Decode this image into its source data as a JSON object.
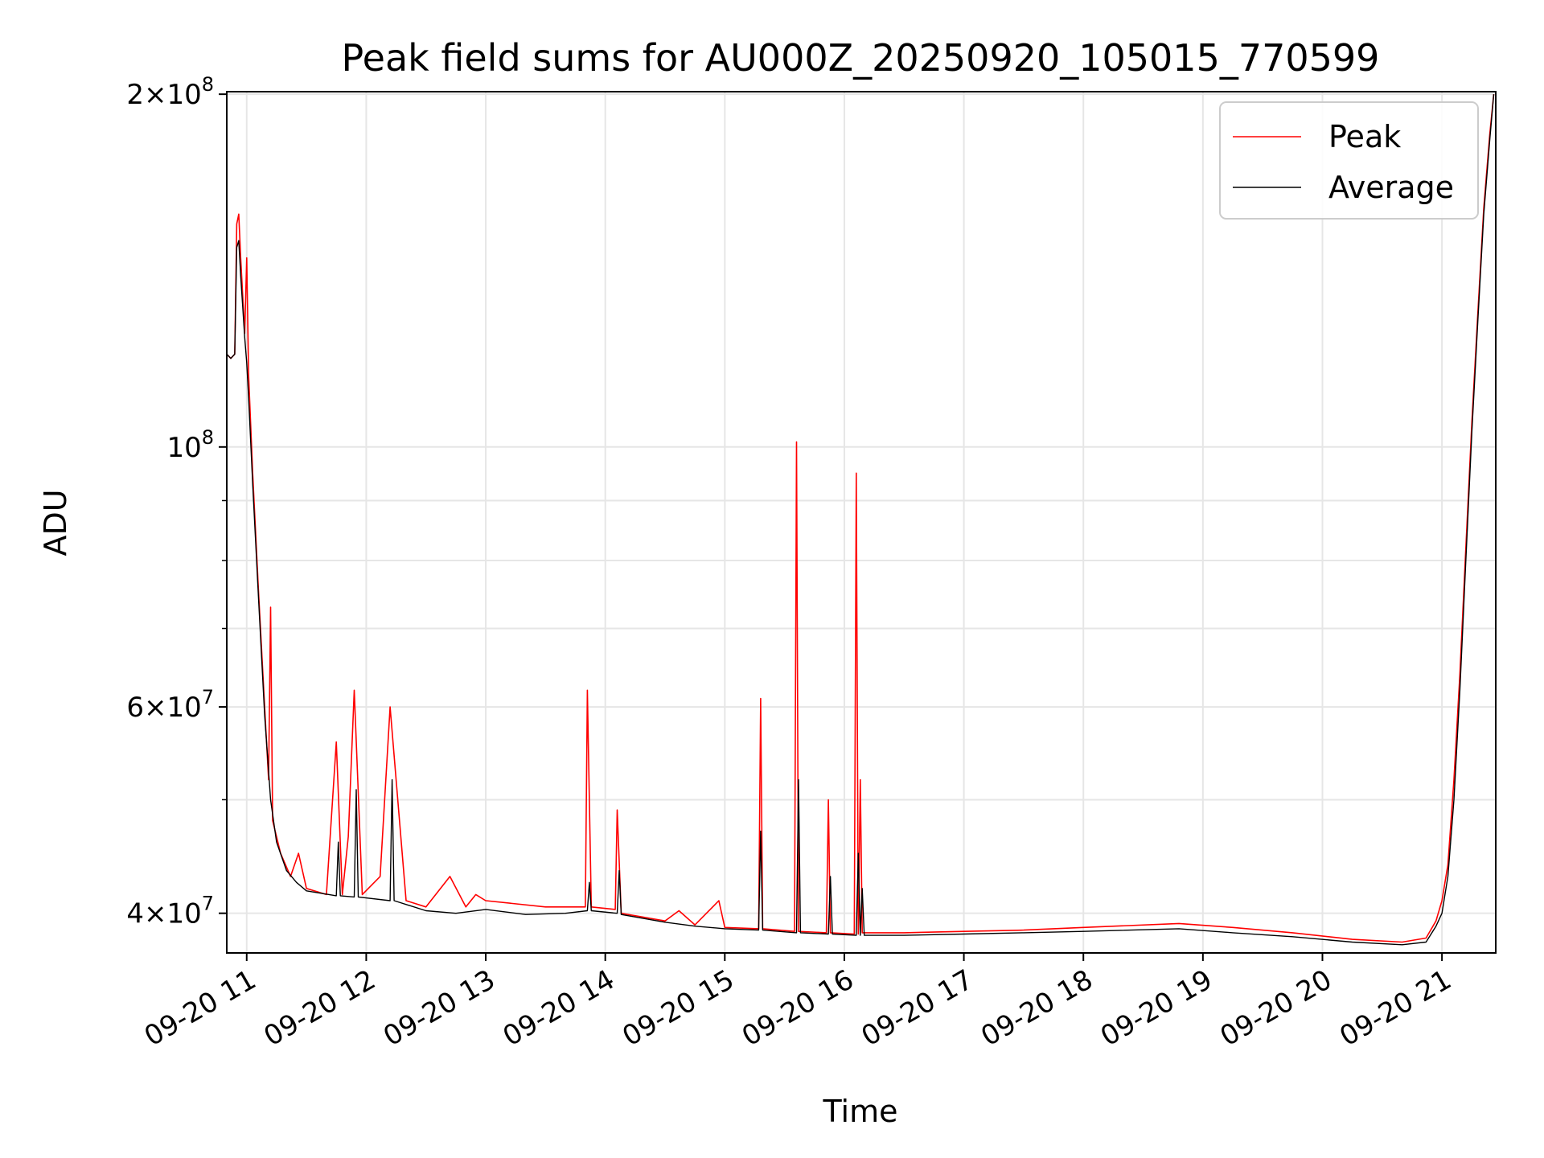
{
  "chart_data": {
    "type": "line",
    "title": "Peak field sums for AU000Z_20250920_105015_770599",
    "xlabel": "Time",
    "ylabel": "ADU",
    "y_scale": "log",
    "ylim": [
      37000000,
      201000000
    ],
    "xlim": [
      "2025-09-20 10:50",
      "2025-09-20 21:27"
    ],
    "grid": true,
    "legend_position": "top-right",
    "x_ticks": [
      {
        "t": "2025-09-20 11:00",
        "label": "09-20 11"
      },
      {
        "t": "2025-09-20 12:00",
        "label": "09-20 12"
      },
      {
        "t": "2025-09-20 13:00",
        "label": "09-20 13"
      },
      {
        "t": "2025-09-20 14:00",
        "label": "09-20 14"
      },
      {
        "t": "2025-09-20 15:00",
        "label": "09-20 15"
      },
      {
        "t": "2025-09-20 16:00",
        "label": "09-20 16"
      },
      {
        "t": "2025-09-20 17:00",
        "label": "09-20 17"
      },
      {
        "t": "2025-09-20 18:00",
        "label": "09-20 18"
      },
      {
        "t": "2025-09-20 19:00",
        "label": "09-20 19"
      },
      {
        "t": "2025-09-20 20:00",
        "label": "09-20 20"
      },
      {
        "t": "2025-09-20 21:00",
        "label": "09-20 21"
      }
    ],
    "y_ticks": [
      {
        "value": 40000000,
        "base": "4×10",
        "exp": "7"
      },
      {
        "value": 60000000,
        "base": "6×10",
        "exp": "7"
      },
      {
        "value": 100000000,
        "base": "10",
        "exp": "8"
      },
      {
        "value": 200000000,
        "base": "2×10",
        "exp": "8"
      }
    ],
    "y_minor_ticks": [
      50000000,
      70000000,
      80000000,
      90000000
    ],
    "series": [
      {
        "name": "Peak",
        "color": "#ff0000",
        "points": [
          [
            "2025-09-20 10:50",
            120000000
          ],
          [
            "2025-09-20 10:52",
            119000000
          ],
          [
            "2025-09-20 10:54",
            120000000
          ],
          [
            "2025-09-20 10:55",
            155000000
          ],
          [
            "2025-09-20 10:56",
            158000000
          ],
          [
            "2025-09-20 10:57",
            145000000
          ],
          [
            "2025-09-20 10:59",
            125000000
          ],
          [
            "2025-09-20 11:00",
            145000000
          ],
          [
            "2025-09-20 11:01",
            115000000
          ],
          [
            "2025-09-20 11:03",
            95000000
          ],
          [
            "2025-09-20 11:06",
            75000000
          ],
          [
            "2025-09-20 11:09",
            60000000
          ],
          [
            "2025-09-20 11:11",
            52000000
          ],
          [
            "2025-09-20 11:12",
            73000000
          ],
          [
            "2025-09-20 11:13",
            48000000
          ],
          [
            "2025-09-20 11:17",
            45000000
          ],
          [
            "2025-09-20 11:22",
            43000000
          ],
          [
            "2025-09-20 11:26",
            45000000
          ],
          [
            "2025-09-20 11:30",
            42000000
          ],
          [
            "2025-09-20 11:40",
            41500000
          ],
          [
            "2025-09-20 11:45",
            56000000
          ],
          [
            "2025-09-20 11:48",
            41500000
          ],
          [
            "2025-09-20 11:51",
            46500000
          ],
          [
            "2025-09-20 11:54",
            62000000
          ],
          [
            "2025-09-20 11:58",
            41500000
          ],
          [
            "2025-09-20 12:07",
            43000000
          ],
          [
            "2025-09-20 12:12",
            60000000
          ],
          [
            "2025-09-20 12:20",
            41000000
          ],
          [
            "2025-09-20 12:30",
            40500000
          ],
          [
            "2025-09-20 12:42",
            43000000
          ],
          [
            "2025-09-20 12:50",
            40500000
          ],
          [
            "2025-09-20 12:55",
            41500000
          ],
          [
            "2025-09-20 13:00",
            41000000
          ],
          [
            "2025-09-20 13:30",
            40500000
          ],
          [
            "2025-09-20 13:50",
            40500000
          ],
          [
            "2025-09-20 13:51",
            62000000
          ],
          [
            "2025-09-20 13:53",
            40500000
          ],
          [
            "2025-09-20 14:05",
            40300000
          ],
          [
            "2025-09-20 14:06",
            49000000
          ],
          [
            "2025-09-20 14:08",
            40000000
          ],
          [
            "2025-09-20 14:30",
            39400000
          ],
          [
            "2025-09-20 14:37",
            40200000
          ],
          [
            "2025-09-20 14:45",
            39100000
          ],
          [
            "2025-09-20 14:57",
            41000000
          ],
          [
            "2025-09-20 15:00",
            38900000
          ],
          [
            "2025-09-20 15:17",
            38800000
          ],
          [
            "2025-09-20 15:18",
            61000000
          ],
          [
            "2025-09-20 15:19",
            38800000
          ],
          [
            "2025-09-20 15:35",
            38600000
          ],
          [
            "2025-09-20 15:36",
            101000000
          ],
          [
            "2025-09-20 15:37",
            38600000
          ],
          [
            "2025-09-20 15:51",
            38500000
          ],
          [
            "2025-09-20 15:52",
            50000000
          ],
          [
            "2025-09-20 15:53",
            38500000
          ],
          [
            "2025-09-20 16:05",
            38400000
          ],
          [
            "2025-09-20 16:06",
            95000000
          ],
          [
            "2025-09-20 16:07",
            38400000
          ],
          [
            "2025-09-20 16:08",
            52000000
          ],
          [
            "2025-09-20 16:09",
            38500000
          ],
          [
            "2025-09-20 16:30",
            38500000
          ],
          [
            "2025-09-20 17:00",
            38600000
          ],
          [
            "2025-09-20 17:30",
            38700000
          ],
          [
            "2025-09-20 18:00",
            38900000
          ],
          [
            "2025-09-20 18:48",
            39200000
          ],
          [
            "2025-09-20 19:15",
            38900000
          ],
          [
            "2025-09-20 19:45",
            38500000
          ],
          [
            "2025-09-20 20:15",
            38000000
          ],
          [
            "2025-09-20 20:40",
            37800000
          ],
          [
            "2025-09-20 20:52",
            38100000
          ],
          [
            "2025-09-20 20:57",
            39400000
          ],
          [
            "2025-09-20 21:00",
            41000000
          ],
          [
            "2025-09-20 21:03",
            44000000
          ],
          [
            "2025-09-20 21:06",
            52000000
          ],
          [
            "2025-09-20 21:09",
            64000000
          ],
          [
            "2025-09-20 21:12",
            82000000
          ],
          [
            "2025-09-20 21:15",
            105000000
          ],
          [
            "2025-09-20 21:18",
            130000000
          ],
          [
            "2025-09-20 21:21",
            160000000
          ],
          [
            "2025-09-20 21:24",
            185000000
          ],
          [
            "2025-09-20 21:26",
            200000000
          ]
        ]
      },
      {
        "name": "Average",
        "color": "#000000",
        "points": [
          [
            "2025-09-20 10:50",
            120000000
          ],
          [
            "2025-09-20 10:52",
            119000000
          ],
          [
            "2025-09-20 10:54",
            120000000
          ],
          [
            "2025-09-20 10:55",
            148000000
          ],
          [
            "2025-09-20 10:56",
            150000000
          ],
          [
            "2025-09-20 10:57",
            140000000
          ],
          [
            "2025-09-20 10:59",
            124000000
          ],
          [
            "2025-09-20 11:00",
            118000000
          ],
          [
            "2025-09-20 11:01",
            110000000
          ],
          [
            "2025-09-20 11:03",
            93000000
          ],
          [
            "2025-09-20 11:06",
            74000000
          ],
          [
            "2025-09-20 11:09",
            59000000
          ],
          [
            "2025-09-20 11:12",
            50000000
          ],
          [
            "2025-09-20 11:15",
            46000000
          ],
          [
            "2025-09-20 11:20",
            43500000
          ],
          [
            "2025-09-20 11:25",
            42500000
          ],
          [
            "2025-09-20 11:30",
            41800000
          ],
          [
            "2025-09-20 11:45",
            41400000
          ],
          [
            "2025-09-20 11:46",
            46000000
          ],
          [
            "2025-09-20 11:47",
            41400000
          ],
          [
            "2025-09-20 11:54",
            41300000
          ],
          [
            "2025-09-20 11:55",
            51000000
          ],
          [
            "2025-09-20 11:56",
            41300000
          ],
          [
            "2025-09-20 12:12",
            41000000
          ],
          [
            "2025-09-20 12:13",
            52000000
          ],
          [
            "2025-09-20 12:14",
            41000000
          ],
          [
            "2025-09-20 12:30",
            40200000
          ],
          [
            "2025-09-20 12:45",
            40000000
          ],
          [
            "2025-09-20 13:00",
            40300000
          ],
          [
            "2025-09-20 13:20",
            39900000
          ],
          [
            "2025-09-20 13:40",
            40000000
          ],
          [
            "2025-09-20 13:51",
            40200000
          ],
          [
            "2025-09-20 13:52",
            42500000
          ],
          [
            "2025-09-20 13:53",
            40200000
          ],
          [
            "2025-09-20 14:06",
            40000000
          ],
          [
            "2025-09-20 14:07",
            43500000
          ],
          [
            "2025-09-20 14:08",
            39900000
          ],
          [
            "2025-09-20 14:30",
            39300000
          ],
          [
            "2025-09-20 14:45",
            39000000
          ],
          [
            "2025-09-20 15:00",
            38800000
          ],
          [
            "2025-09-20 15:17",
            38700000
          ],
          [
            "2025-09-20 15:18",
            47000000
          ],
          [
            "2025-09-20 15:19",
            38700000
          ],
          [
            "2025-09-20 15:36",
            38500000
          ],
          [
            "2025-09-20 15:37",
            52000000
          ],
          [
            "2025-09-20 15:38",
            38500000
          ],
          [
            "2025-09-20 15:52",
            38400000
          ],
          [
            "2025-09-20 15:53",
            43000000
          ],
          [
            "2025-09-20 15:54",
            38400000
          ],
          [
            "2025-09-20 16:06",
            38300000
          ],
          [
            "2025-09-20 16:07",
            45000000
          ],
          [
            "2025-09-20 16:08",
            38300000
          ],
          [
            "2025-09-20 16:09",
            42000000
          ],
          [
            "2025-09-20 16:10",
            38300000
          ],
          [
            "2025-09-20 16:30",
            38300000
          ],
          [
            "2025-09-20 17:00",
            38400000
          ],
          [
            "2025-09-20 17:30",
            38500000
          ],
          [
            "2025-09-20 18:00",
            38600000
          ],
          [
            "2025-09-20 18:48",
            38800000
          ],
          [
            "2025-09-20 19:15",
            38500000
          ],
          [
            "2025-09-20 19:45",
            38200000
          ],
          [
            "2025-09-20 20:15",
            37800000
          ],
          [
            "2025-09-20 20:40",
            37600000
          ],
          [
            "2025-09-20 20:52",
            37800000
          ],
          [
            "2025-09-20 20:57",
            39000000
          ],
          [
            "2025-09-20 21:00",
            40000000
          ],
          [
            "2025-09-20 21:03",
            43000000
          ],
          [
            "2025-09-20 21:06",
            50000000
          ],
          [
            "2025-09-20 21:09",
            62000000
          ],
          [
            "2025-09-20 21:12",
            80000000
          ],
          [
            "2025-09-20 21:15",
            103000000
          ],
          [
            "2025-09-20 21:18",
            128000000
          ],
          [
            "2025-09-20 21:21",
            158000000
          ],
          [
            "2025-09-20 21:24",
            183000000
          ],
          [
            "2025-09-20 21:26",
            200000000
          ]
        ]
      }
    ]
  }
}
